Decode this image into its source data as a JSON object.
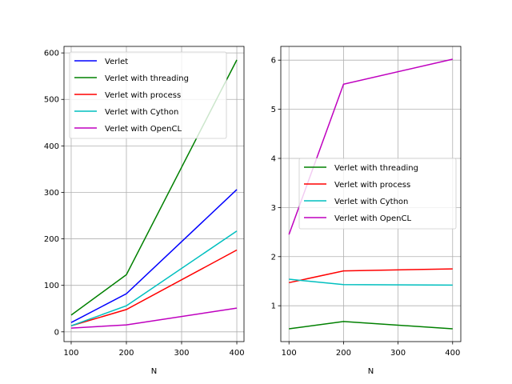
{
  "chart_data": [
    {
      "type": "line",
      "xlabel": "N",
      "ylabel": "",
      "x": [
        100,
        200,
        400
      ],
      "xlim": [
        87,
        413
      ],
      "ylim": [
        -21,
        614
      ],
      "xticks": [
        100,
        200,
        300,
        400
      ],
      "yticks": [
        0,
        100,
        200,
        300,
        400,
        500,
        600
      ],
      "grid": true,
      "legend_position": "top-left",
      "series": [
        {
          "name": "Verlet",
          "color": "#0000ff",
          "values": [
            20,
            82,
            306
          ]
        },
        {
          "name": "Verlet with threading",
          "color": "#008000",
          "values": [
            36,
            123,
            585
          ]
        },
        {
          "name": "Verlet with process",
          "color": "#ff0000",
          "values": [
            13,
            48,
            176
          ]
        },
        {
          "name": "Verlet with Cython",
          "color": "#00bfbf",
          "values": [
            13,
            56,
            217
          ]
        },
        {
          "name": "Verlet with OpenCL",
          "color": "#bf00bf",
          "values": [
            8,
            15,
            51
          ]
        }
      ]
    },
    {
      "type": "line",
      "xlabel": "N",
      "ylabel": "",
      "x": [
        100,
        200,
        400
      ],
      "xlim": [
        85,
        415
      ],
      "ylim": [
        0.27,
        6.28
      ],
      "xticks": [
        100,
        200,
        300,
        400
      ],
      "yticks": [
        1,
        2,
        3,
        4,
        5,
        6
      ],
      "grid": true,
      "legend_position": "center-right",
      "series": [
        {
          "name": "Verlet with threading",
          "color": "#008000",
          "values": [
            0.53,
            0.68,
            0.53
          ]
        },
        {
          "name": "Verlet with process",
          "color": "#ff0000",
          "values": [
            1.47,
            1.71,
            1.75
          ]
        },
        {
          "name": "Verlet with Cython",
          "color": "#00bfbf",
          "values": [
            1.54,
            1.43,
            1.42
          ]
        },
        {
          "name": "Verlet with OpenCL",
          "color": "#bf00bf",
          "values": [
            2.45,
            5.51,
            6.02
          ]
        }
      ]
    }
  ]
}
